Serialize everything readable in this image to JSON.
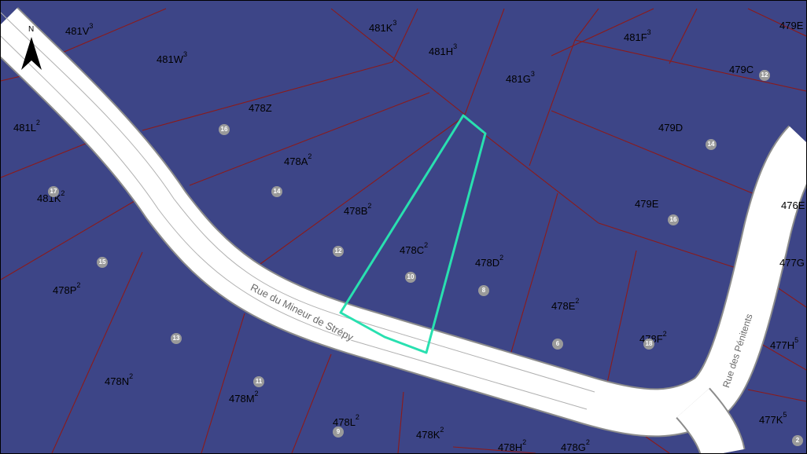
{
  "map": {
    "colors": {
      "parcel_fill": "#3d4587",
      "parcel_border": "#8b1a1a",
      "road_fill": "#ffffff",
      "road_edge": "#8c8c8c",
      "highlight": "#29e0b0",
      "house_badge": "#9a9a9a"
    },
    "north_label": "N",
    "streets": [
      {
        "name": "Rue du Mineur de Strépy"
      },
      {
        "name": "Rue des Pénitents"
      }
    ],
    "highlighted_parcel": "478C",
    "parcels": [
      {
        "base": "481V",
        "exp": "3"
      },
      {
        "base": "481W",
        "exp": "3"
      },
      {
        "base": "481K",
        "exp": "3"
      },
      {
        "base": "481H",
        "exp": "3"
      },
      {
        "base": "481G",
        "exp": "3"
      },
      {
        "base": "481F",
        "exp": "3"
      },
      {
        "base": "479E",
        "exp": ""
      },
      {
        "base": "479C",
        "exp": ""
      },
      {
        "base": "478Z",
        "exp": ""
      },
      {
        "base": "481L",
        "exp": "2"
      },
      {
        "base": "479D",
        "exp": ""
      },
      {
        "base": "478A",
        "exp": "2"
      },
      {
        "base": "481K",
        "exp": "2"
      },
      {
        "base": "478B",
        "exp": "2"
      },
      {
        "base": "479E",
        "exp": ""
      },
      {
        "base": "476E",
        "exp": ""
      },
      {
        "base": "478C",
        "exp": "2"
      },
      {
        "base": "478D",
        "exp": "2"
      },
      {
        "base": "477G",
        "exp": ""
      },
      {
        "base": "478P",
        "exp": "2"
      },
      {
        "base": "478E",
        "exp": "2"
      },
      {
        "base": "478F",
        "exp": "2"
      },
      {
        "base": "477H",
        "exp": "5"
      },
      {
        "base": "478N",
        "exp": "2"
      },
      {
        "base": "478M",
        "exp": "2"
      },
      {
        "base": "478L",
        "exp": "2"
      },
      {
        "base": "478K",
        "exp": "2"
      },
      {
        "base": "478H",
        "exp": "2"
      },
      {
        "base": "478G",
        "exp": "2"
      },
      {
        "base": "477K",
        "exp": "5"
      }
    ],
    "house_numbers": [
      "12",
      "16",
      "14",
      "17",
      "14",
      "16",
      "15",
      "12",
      "10",
      "8",
      "13",
      "6",
      "18",
      "11",
      "9",
      "2"
    ]
  }
}
